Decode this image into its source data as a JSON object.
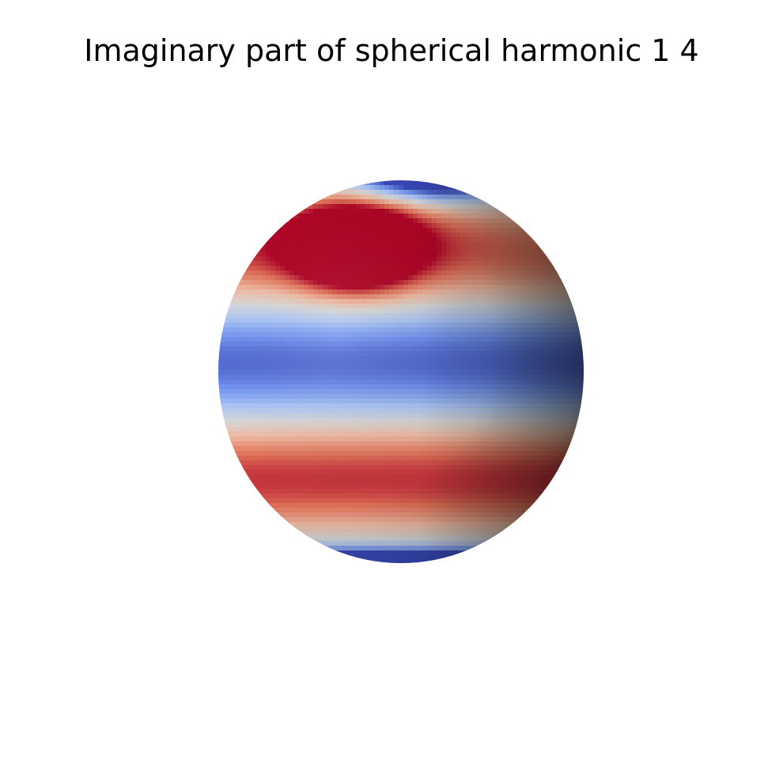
{
  "chart_data": {
    "type": "surface",
    "title": "Imaginary part of spherical harmonic 1 4",
    "surface": "sphere",
    "colormap": "coolwarm",
    "colormap_stops": [
      "#3b4cc0",
      "#7396f5",
      "#b0cbfc",
      "#dddddd",
      "#f6bfa6",
      "#e7745b",
      "#b40426"
    ],
    "axes_visible": false
  }
}
